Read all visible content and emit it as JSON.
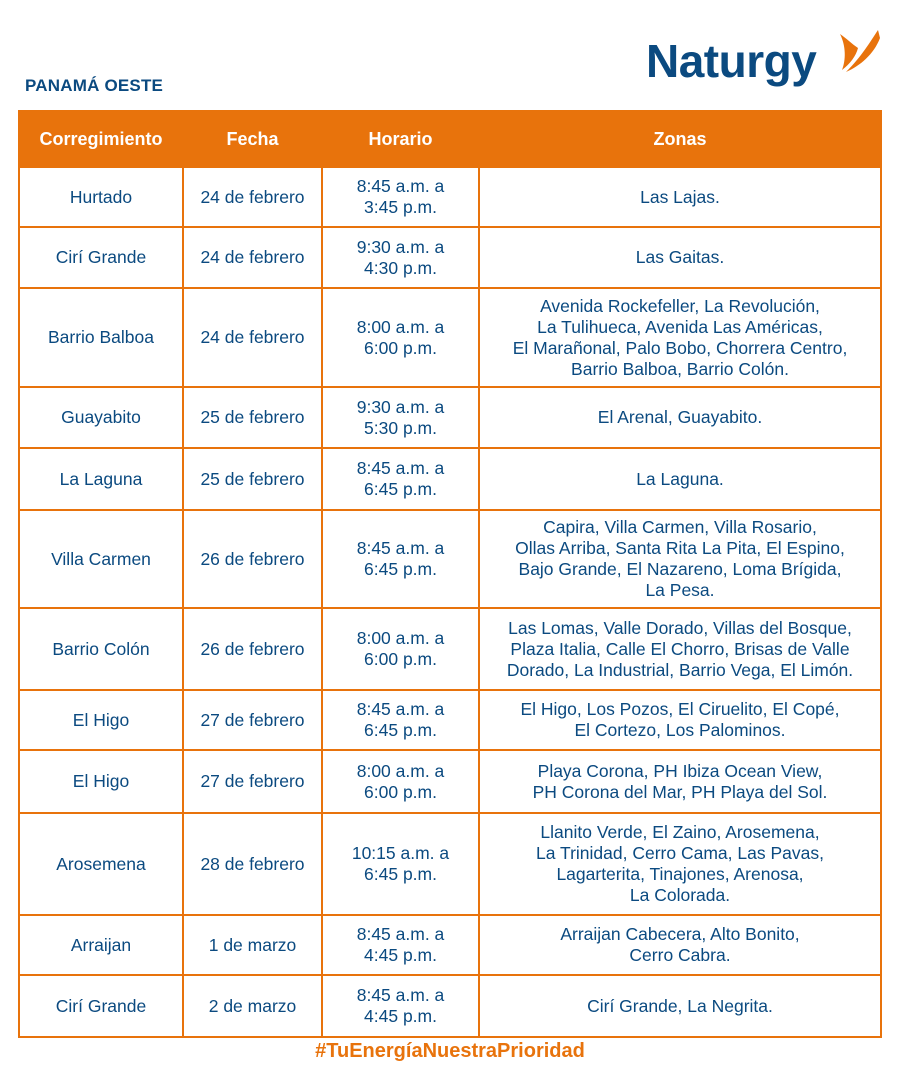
{
  "header": {
    "region": "PANAMÁ OESTE",
    "logo": "Naturgy",
    "brand_colors": {
      "blue": "#0b4a80",
      "orange": "#e8730c"
    }
  },
  "table": {
    "columns": [
      "Corregimiento",
      "Fecha",
      "Horario",
      "Zonas"
    ],
    "rows": [
      {
        "corregimiento": "Hurtado",
        "fecha": "24 de febrero",
        "horario": "8:45 a.m. a\n3:45 p.m.",
        "zonas": "Las Lajas."
      },
      {
        "corregimiento": "Cirí Grande",
        "fecha": "24 de febrero",
        "horario": "9:30 a.m. a\n4:30 p.m.",
        "zonas": "Las Gaitas."
      },
      {
        "corregimiento": "Barrio Balboa",
        "fecha": "24 de febrero",
        "horario": "8:00 a.m. a\n6:00 p.m.",
        "zonas": "Avenida Rockefeller, La Revolución,\nLa Tulihueca, Avenida Las Américas,\nEl Marañonal,  Palo Bobo, Chorrera Centro,\nBarrio Balboa, Barrio Colón."
      },
      {
        "corregimiento": "Guayabito",
        "fecha": "25 de febrero",
        "horario": "9:30 a.m. a\n5:30 p.m.",
        "zonas": "El Arenal, Guayabito."
      },
      {
        "corregimiento": "La Laguna",
        "fecha": "25 de febrero",
        "horario": "8:45 a.m. a\n6:45 p.m.",
        "zonas": "La Laguna."
      },
      {
        "corregimiento": "Villa Carmen",
        "fecha": "26 de febrero",
        "horario": "8:45 a.m. a\n6:45 p.m.",
        "zonas": "Capira, Villa Carmen, Villa Rosario,\nOllas Arriba, Santa Rita  La Pita, El Espino,\nBajo Grande, El Nazareno, Loma Brígida,\nLa Pesa."
      },
      {
        "corregimiento": "Barrio Colón",
        "fecha": "26 de febrero",
        "horario": "8:00 a.m. a\n6:00 p.m.",
        "zonas": "Las Lomas, Valle Dorado, Villas del Bosque,\nPlaza Italia, Calle El Chorro, Brisas de Valle\nDorado, La Industrial, Barrio Vega, El Limón."
      },
      {
        "corregimiento": "El Higo",
        "fecha": "27 de febrero",
        "horario": "8:45 a.m. a\n6:45 p.m.",
        "zonas": "El Higo, Los Pozos, El Ciruelito, El Copé,\nEl Cortezo, Los Palominos."
      },
      {
        "corregimiento": "El Higo",
        "fecha": "27 de febrero",
        "horario": "8:00 a.m. a\n6:00 p.m.",
        "zonas": "Playa Corona, PH Ibiza Ocean View,\nPH Corona del Mar, PH Playa del Sol."
      },
      {
        "corregimiento": "Arosemena",
        "fecha": "28 de febrero",
        "horario": "10:15 a.m. a\n6:45 p.m.",
        "zonas": "Llanito Verde, El Zaino, Arosemena,\nLa Trinidad, Cerro Cama, Las Pavas,\nLagarterita, Tinajones, Arenosa,\nLa Colorada."
      },
      {
        "corregimiento": "Arraijan",
        "fecha": "1 de marzo",
        "horario": "8:45 a.m. a\n4:45 p.m.",
        "zonas": "Arraijan Cabecera, Alto Bonito,\nCerro Cabra."
      },
      {
        "corregimiento": "Cirí Grande",
        "fecha": "2 de marzo",
        "horario": "8:45 a.m. a\n4:45 p.m.",
        "zonas": "Cirí Grande, La Negrita."
      }
    ]
  },
  "footer": {
    "hashtag": "#TuEnergíaNuestraPrioridad"
  }
}
